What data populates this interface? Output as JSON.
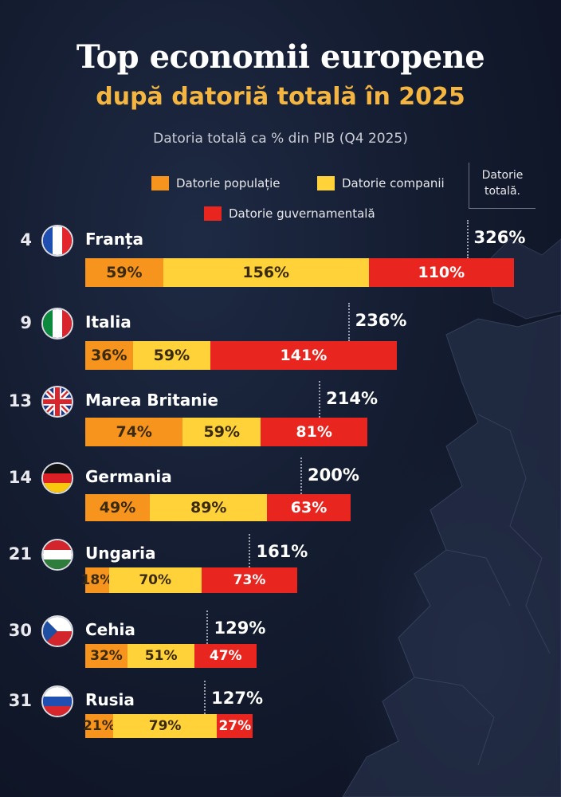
{
  "title": "Top economii europene",
  "subtitle": "după datoriă totală în 2025",
  "caption": "Datoria totală ca % din PIB (Q4 2025)",
  "legend": {
    "household": "Datorie populație",
    "companies": "Datorie companii",
    "government": "Datorie guvernamentală",
    "total_line1": "Datorie",
    "total_line2": "totală."
  },
  "colors": {
    "household": "#f7941d",
    "companies": "#ffd23a",
    "government": "#e8261f"
  },
  "chart_data": {
    "type": "bar",
    "stacked": true,
    "orientation": "horizontal",
    "unit": "%",
    "series_names": [
      "Datorie populație",
      "Datorie companii",
      "Datorie guvernamentală"
    ],
    "rows": [
      {
        "rank": "4",
        "country": "Franța",
        "flag": "france-flag-icon",
        "household": "59%",
        "companies": "156%",
        "government": "110%",
        "total": "326%",
        "values": [
          59,
          156,
          110
        ],
        "total_value": 326
      },
      {
        "rank": "9",
        "country": "Italia",
        "flag": "italy-flag-icon",
        "household": "36%",
        "companies": "59%",
        "government": "141%",
        "total": "236%",
        "values": [
          36,
          59,
          141
        ],
        "total_value": 236
      },
      {
        "rank": "13",
        "country": "Marea Britanie",
        "flag": "uk-flag-icon",
        "household": "74%",
        "companies": "59%",
        "government": "81%",
        "total": "214%",
        "values": [
          74,
          59,
          81
        ],
        "total_value": 214
      },
      {
        "rank": "14",
        "country": "Germania",
        "flag": "germany-flag-icon",
        "household": "49%",
        "companies": "89%",
        "government": "63%",
        "total": "200%",
        "values": [
          49,
          89,
          63
        ],
        "total_value": 200
      },
      {
        "rank": "21",
        "country": "Ungaria",
        "flag": "hungary-flag-icon",
        "household": "18%",
        "companies": "70%",
        "government": "73%",
        "total": "161%",
        "values": [
          18,
          70,
          73
        ],
        "total_value": 161
      },
      {
        "rank": "30",
        "country": "Cehia",
        "flag": "czech-flag-icon",
        "household": "32%",
        "companies": "51%",
        "government": "47%",
        "total": "129%",
        "values": [
          32,
          51,
          47
        ],
        "total_value": 129
      },
      {
        "rank": "31",
        "country": "Rusia",
        "flag": "russia-flag-icon",
        "household": "21%",
        "companies": "79%",
        "government": "27%",
        "total": "127%",
        "values": [
          21,
          79,
          27
        ],
        "total_value": 127
      }
    ]
  }
}
